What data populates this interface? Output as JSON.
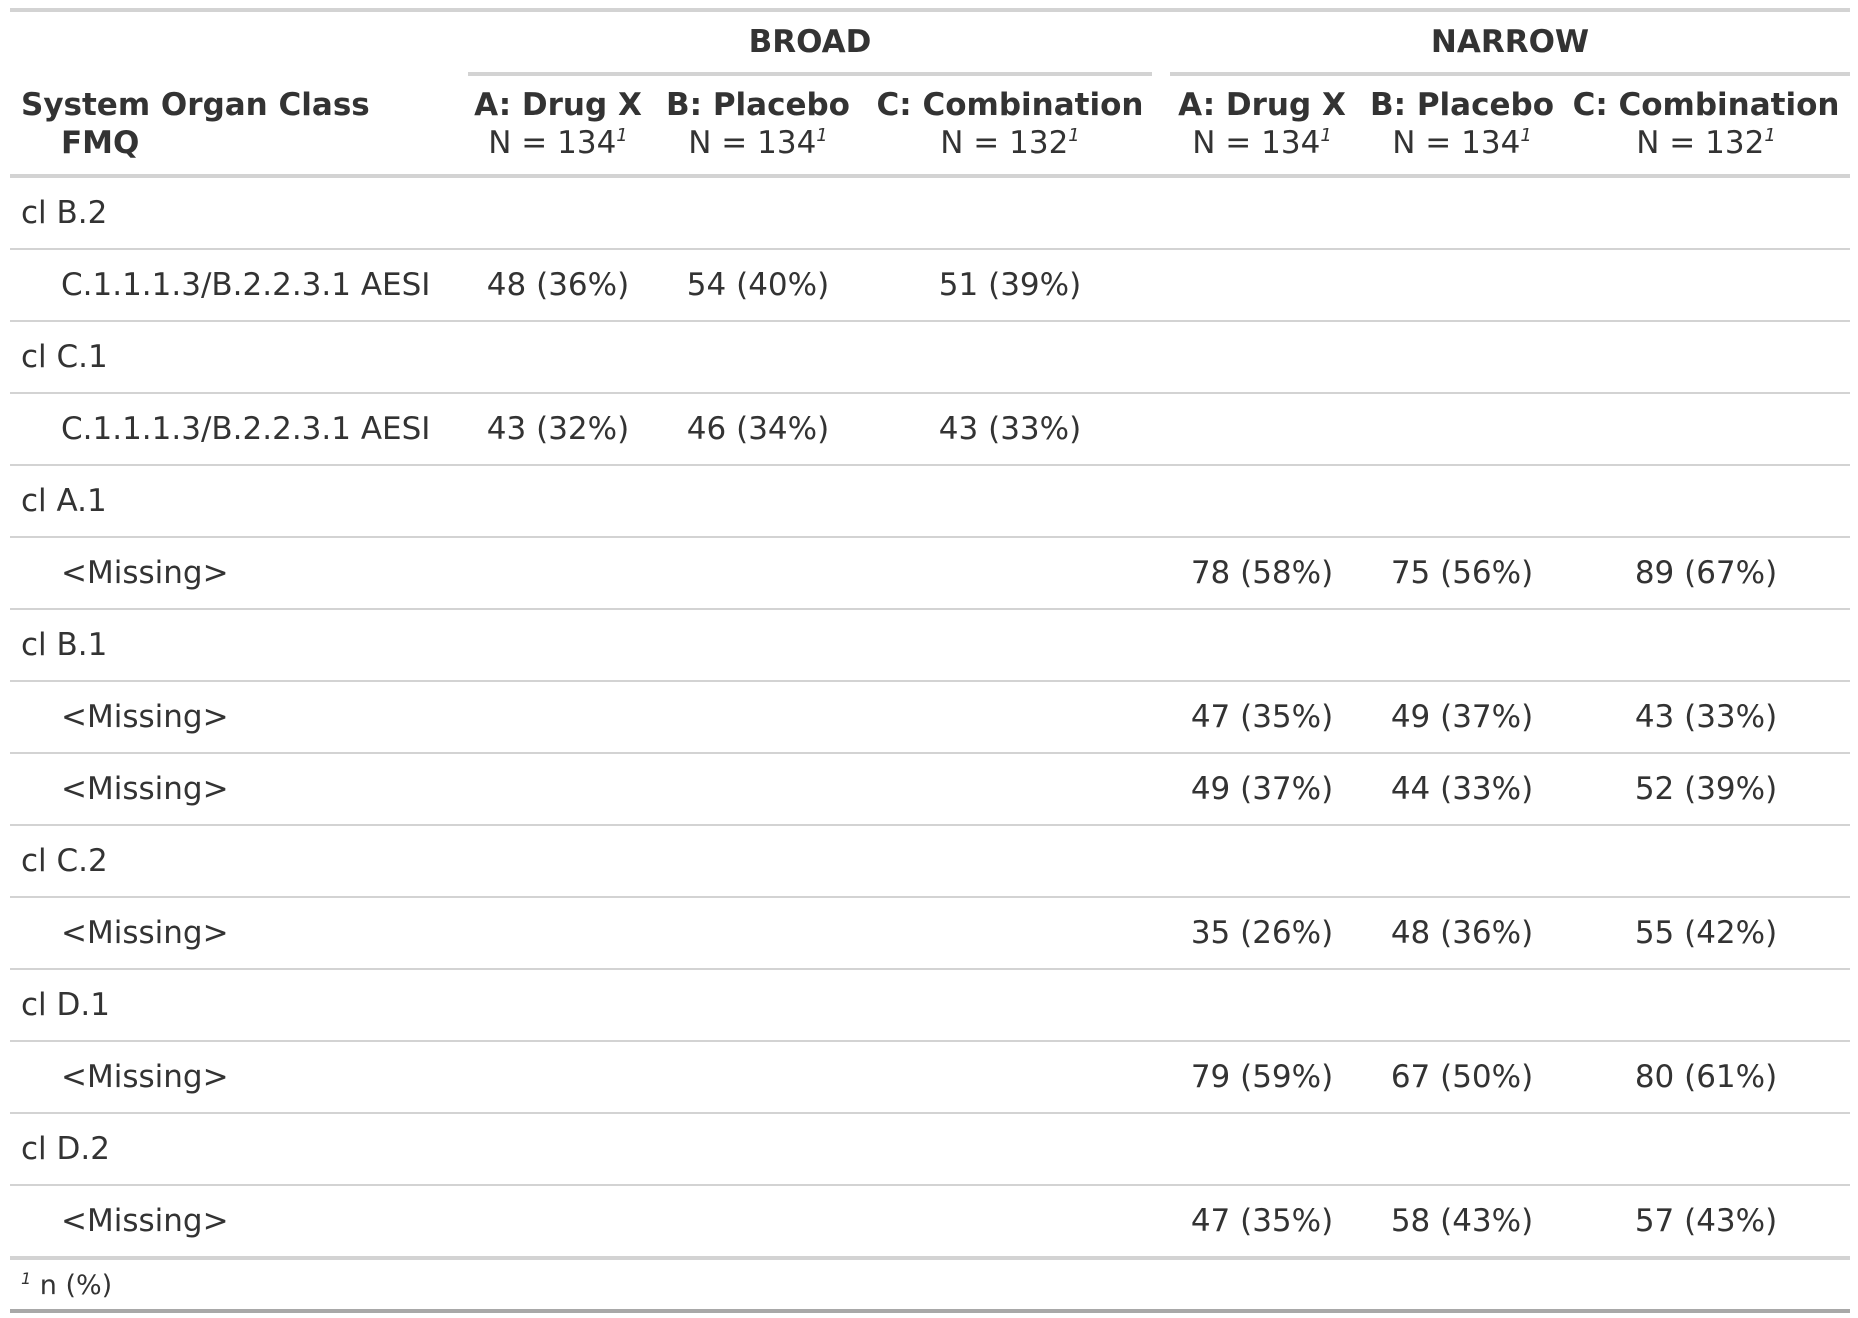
{
  "header": {
    "spanners": [
      {
        "label": "BROAD"
      },
      {
        "label": "NARROW"
      }
    ],
    "stub_label": "System Organ Class",
    "stub_sublabel": "FMQ",
    "columns": [
      {
        "name": "A: Drug X",
        "n": "N = 134",
        "mark": "1"
      },
      {
        "name": "B: Placebo",
        "n": "N = 134",
        "mark": "1"
      },
      {
        "name": "C: Combination",
        "n": "N = 132",
        "mark": "1"
      },
      {
        "name": "A: Drug X",
        "n": "N = 134",
        "mark": "1"
      },
      {
        "name": "B: Placebo",
        "n": "N = 134",
        "mark": "1"
      },
      {
        "name": "C: Combination",
        "n": "N = 132",
        "mark": "1"
      }
    ]
  },
  "rows": [
    {
      "label": "cl B.2",
      "values": [
        "",
        "",
        "",
        "",
        "",
        ""
      ]
    },
    {
      "label": "C.1.1.1.3/B.2.2.3.1 AESI",
      "values": [
        "48 (36%)",
        "54 (40%)",
        "51 (39%)",
        "",
        "",
        ""
      ]
    },
    {
      "label": "cl C.1",
      "values": [
        "",
        "",
        "",
        "",
        "",
        ""
      ]
    },
    {
      "label": "C.1.1.1.3/B.2.2.3.1 AESI",
      "values": [
        "43 (32%)",
        "46 (34%)",
        "43 (33%)",
        "",
        "",
        ""
      ]
    },
    {
      "label": "cl A.1",
      "values": [
        "",
        "",
        "",
        "",
        "",
        ""
      ]
    },
    {
      "label": "<Missing>",
      "values": [
        "",
        "",
        "",
        "78 (58%)",
        "75 (56%)",
        "89 (67%)"
      ]
    },
    {
      "label": "cl B.1",
      "values": [
        "",
        "",
        "",
        "",
        "",
        ""
      ]
    },
    {
      "label": "<Missing>",
      "values": [
        "",
        "",
        "",
        "47 (35%)",
        "49 (37%)",
        "43 (33%)"
      ]
    },
    {
      "label": "<Missing>",
      "values": [
        "",
        "",
        "",
        "49 (37%)",
        "44 (33%)",
        "52 (39%)"
      ]
    },
    {
      "label": "cl C.2",
      "values": [
        "",
        "",
        "",
        "",
        "",
        ""
      ]
    },
    {
      "label": "<Missing>",
      "values": [
        "",
        "",
        "",
        "35 (26%)",
        "48 (36%)",
        "55 (42%)"
      ]
    },
    {
      "label": "cl D.1",
      "values": [
        "",
        "",
        "",
        "",
        "",
        ""
      ]
    },
    {
      "label": "<Missing>",
      "values": [
        "",
        "",
        "",
        "79 (59%)",
        "67 (50%)",
        "80 (61%)"
      ]
    },
    {
      "label": "cl D.2",
      "values": [
        "",
        "",
        "",
        "",
        "",
        ""
      ]
    },
    {
      "label": "<Missing>",
      "values": [
        "",
        "",
        "",
        "47 (35%)",
        "58 (43%)",
        "57 (43%)"
      ]
    }
  ],
  "footnote": {
    "mark": "1",
    "text": "n (%)"
  }
}
